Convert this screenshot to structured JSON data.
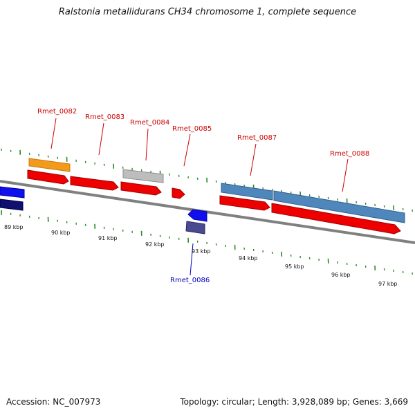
{
  "title": "Ralstonia metallidurans CH34 chromosome 1, complete sequence",
  "footer": {
    "accession": "Accession: NC_007973",
    "summary": "Topology: circular; Length: 3,928,089 bp; Genes: 3,669"
  },
  "colors": {
    "cds": "#ee0000",
    "gene_orange": "#f39a1a",
    "gene_gray": "#bdbdbd",
    "gene_steel": "#4f87bd",
    "gene_blue": "#1010ee",
    "gene_navy": "#101070",
    "gene_purple": "#4a4a90",
    "tick": "#2a8a2a",
    "backbone": "#808080",
    "label_red": "#cc0000",
    "label_blue": "#0000bb"
  },
  "scale_labels": [
    "89 kbp",
    "90 kbp",
    "91 kbp",
    "92 kbp",
    "93 kbp",
    "94 kbp",
    "95 kbp",
    "96 kbp",
    "97 kbp"
  ],
  "gene_labels": [
    {
      "id": "Rmet_0082",
      "strand": "forward"
    },
    {
      "id": "Rmet_0083",
      "strand": "forward"
    },
    {
      "id": "Rmet_0084",
      "strand": "forward"
    },
    {
      "id": "Rmet_0085",
      "strand": "forward"
    },
    {
      "id": "Rmet_0086",
      "strand": "reverse"
    },
    {
      "id": "Rmet_0087",
      "strand": "forward"
    },
    {
      "id": "Rmet_0088",
      "strand": "forward"
    }
  ]
}
